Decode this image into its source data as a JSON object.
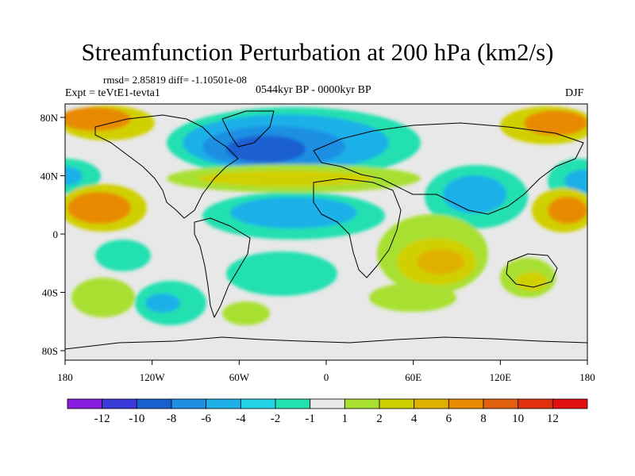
{
  "title": "Streamfunction Perturbation at 200 hPa (km2/s)",
  "stats": "rmsd= 2.85819 diff= -1.10501e-08",
  "experiment": "Expt = teVtE1-tevta1",
  "period": "0544kyr BP - 0000kyr BP",
  "season": "DJF",
  "lat_ticks": [
    "80N",
    "40N",
    "0",
    "40S",
    "80S"
  ],
  "lon_ticks": [
    "180",
    "120W",
    "60W",
    "0",
    "60E",
    "120E",
    "180"
  ],
  "colorbar": {
    "labels": [
      "-12",
      "-10",
      "-8",
      "-6",
      "-4",
      "-2",
      "-1",
      "1",
      "2",
      "4",
      "6",
      "8",
      "10",
      "12"
    ],
    "colors": [
      "#8a1ee0",
      "#3a3ad8",
      "#1a5fd0",
      "#1f8fe3",
      "#1fb0e8",
      "#22d3e8",
      "#22e0b0",
      "#e8e8e8",
      "#a8e030",
      "#d0d000",
      "#e0b000",
      "#e88a00",
      "#e06010",
      "#e03010",
      "#e01010"
    ]
  },
  "legend_colors": {
    "neutral": "#e8e8e8",
    "neg_weak": "#22e0b0",
    "neg_mid": "#1fb0e8",
    "neg_strong": "#1f8fe3",
    "neg_deep": "#1a5fd0",
    "pos_weak": "#a8e030",
    "pos_mid": "#d0d000",
    "pos_strong": "#e0b000",
    "pos_deep": "#e88a00"
  }
}
